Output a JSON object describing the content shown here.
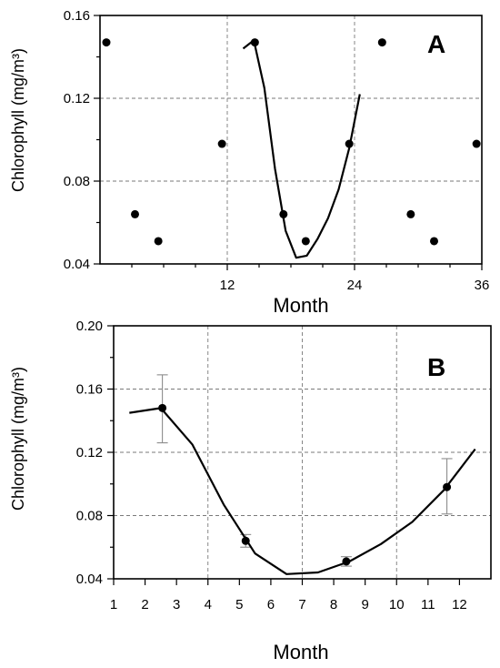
{
  "chart_data": [
    {
      "panel": "A",
      "type": "scatter",
      "ylabel": "Chlorophyll (mg/m³)",
      "xlabel": "Month",
      "xlim": [
        0,
        36
      ],
      "ylim": [
        0.04,
        0.16
      ],
      "xticks": [
        12,
        24,
        36
      ],
      "yticks": [
        0.04,
        0.08,
        0.12,
        0.16
      ],
      "grid": true,
      "points": [
        {
          "x": 0.6,
          "y": 0.147
        },
        {
          "x": 3.3,
          "y": 0.064
        },
        {
          "x": 5.5,
          "y": 0.051
        },
        {
          "x": 11.5,
          "y": 0.098
        },
        {
          "x": 14.6,
          "y": 0.147
        },
        {
          "x": 17.3,
          "y": 0.064
        },
        {
          "x": 19.4,
          "y": 0.051
        },
        {
          "x": 23.5,
          "y": 0.098
        },
        {
          "x": 26.6,
          "y": 0.147
        },
        {
          "x": 29.3,
          "y": 0.064
        },
        {
          "x": 31.5,
          "y": 0.051
        },
        {
          "x": 35.5,
          "y": 0.098
        }
      ],
      "curve": [
        {
          "x": 13.5,
          "y": 0.144
        },
        {
          "x": 14.5,
          "y": 0.148
        },
        {
          "x": 15.5,
          "y": 0.125
        },
        {
          "x": 16.5,
          "y": 0.086
        },
        {
          "x": 17.5,
          "y": 0.056
        },
        {
          "x": 18.5,
          "y": 0.043
        },
        {
          "x": 19.5,
          "y": 0.044
        },
        {
          "x": 20.5,
          "y": 0.052
        },
        {
          "x": 21.5,
          "y": 0.062
        },
        {
          "x": 22.5,
          "y": 0.076
        },
        {
          "x": 23.5,
          "y": 0.096
        },
        {
          "x": 24.5,
          "y": 0.122
        }
      ]
    },
    {
      "panel": "B",
      "type": "line",
      "ylabel": "Chlorophyll (mg/m³)",
      "xlabel": "Month",
      "xlim": [
        1,
        13
      ],
      "ylim": [
        0.04,
        0.2
      ],
      "xticks": [
        1,
        2,
        3,
        4,
        5,
        6,
        7,
        8,
        9,
        10,
        11,
        12
      ],
      "xgrid": [
        4,
        7,
        10,
        13
      ],
      "yticks": [
        0.04,
        0.08,
        0.12,
        0.16,
        0.2
      ],
      "grid": true,
      "curve": [
        {
          "x": 1.5,
          "y": 0.145
        },
        {
          "x": 2.5,
          "y": 0.148
        },
        {
          "x": 3.5,
          "y": 0.125
        },
        {
          "x": 4.5,
          "y": 0.087
        },
        {
          "x": 5.5,
          "y": 0.056
        },
        {
          "x": 6.5,
          "y": 0.043
        },
        {
          "x": 7.5,
          "y": 0.044
        },
        {
          "x": 8.5,
          "y": 0.051
        },
        {
          "x": 9.5,
          "y": 0.062
        },
        {
          "x": 10.5,
          "y": 0.076
        },
        {
          "x": 11.5,
          "y": 0.096
        },
        {
          "x": 12.5,
          "y": 0.122
        }
      ],
      "points": [
        {
          "x": 2.55,
          "y": 0.148,
          "err_low": 0.126,
          "err_high": 0.169
        },
        {
          "x": 5.2,
          "y": 0.064,
          "err_low": 0.06,
          "err_high": 0.068
        },
        {
          "x": 8.4,
          "y": 0.051,
          "err_low": 0.048,
          "err_high": 0.054
        },
        {
          "x": 11.6,
          "y": 0.098,
          "err_low": 0.081,
          "err_high": 0.116
        }
      ]
    }
  ],
  "tick_labels": {
    "a_y": [
      "0.04",
      "0.08",
      "0.12",
      "0.16"
    ],
    "a_x": [
      "12",
      "24",
      "36"
    ],
    "b_y": [
      "0.04",
      "0.08",
      "0.12",
      "0.16",
      "0.20"
    ],
    "b_x": [
      "1",
      "2",
      "3",
      "4",
      "5",
      "6",
      "7",
      "8",
      "9",
      "10",
      "11",
      "12"
    ]
  },
  "labels": {
    "panel_a": "A",
    "panel_b": "B",
    "ylabel_a": "Chlorophyll (mg/m³)",
    "ylabel_b": "Chlorophyll (mg/m³)",
    "xlabel_a": "Month",
    "xlabel_b": "Month"
  }
}
